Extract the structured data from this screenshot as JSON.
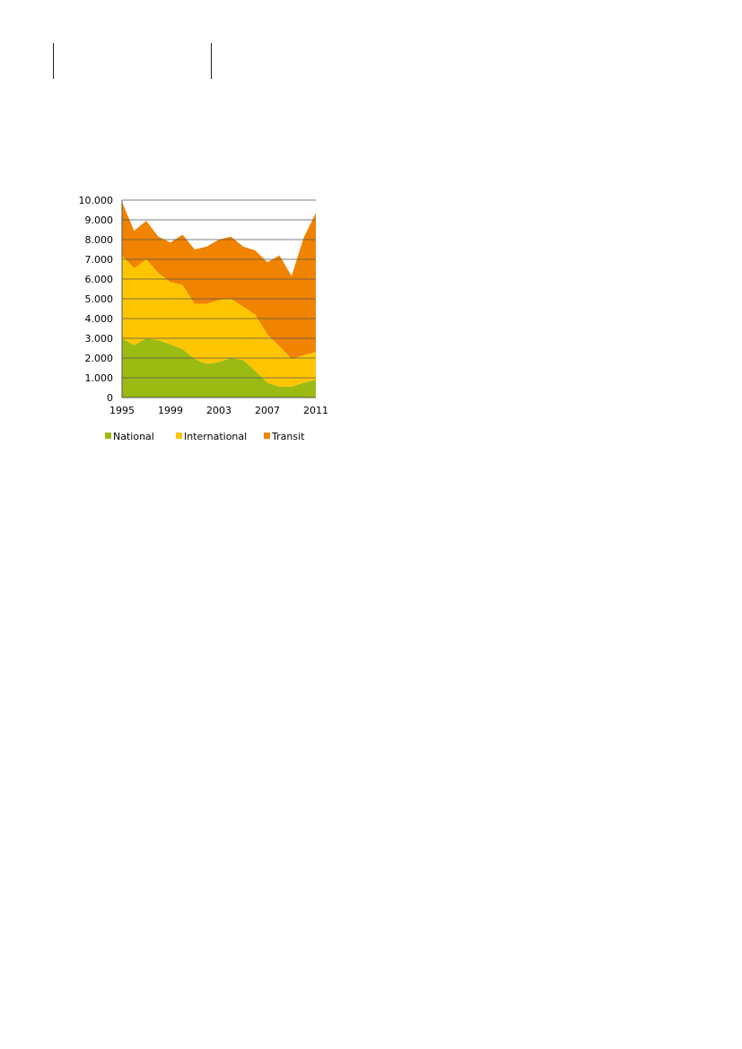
{
  "chart_data": {
    "type": "area",
    "stacked": true,
    "x": [
      1995,
      1996,
      1997,
      1998,
      1999,
      2000,
      2001,
      2002,
      2003,
      2004,
      2005,
      2006,
      2007,
      2008,
      2009,
      2010,
      2011
    ],
    "series": [
      {
        "name": "National",
        "color": "#9bbb13",
        "values": [
          3000,
          2650,
          3000,
          2900,
          2700,
          2450,
          1950,
          1700,
          1800,
          2000,
          1900,
          1350,
          750,
          550,
          550,
          750,
          900
        ]
      },
      {
        "name": "International",
        "color": "#ffc600",
        "values": [
          4200,
          3900,
          4000,
          3400,
          3150,
          3250,
          2800,
          3050,
          3150,
          3000,
          2700,
          2850,
          2450,
          2050,
          1400,
          1400,
          1400
        ]
      },
      {
        "name": "Transit",
        "color": "#f08300",
        "values": [
          2700,
          1900,
          1950,
          1850,
          2000,
          2550,
          2750,
          2900,
          3050,
          3150,
          3050,
          3250,
          3650,
          4600,
          4200,
          5950,
          7050
        ]
      }
    ],
    "y_ticks": [
      "0",
      "1.000",
      "2.000",
      "3.000",
      "4.000",
      "5.000",
      "6.000",
      "7.000",
      "8.000",
      "9.000",
      "10.000"
    ],
    "x_ticks": [
      "1995",
      "1999",
      "2003",
      "2007",
      "2011"
    ],
    "x_tick_values": [
      1995,
      1999,
      2003,
      2007,
      2011
    ],
    "ylim": [
      0,
      10000
    ],
    "grid": true,
    "legend_position": "bottom"
  }
}
